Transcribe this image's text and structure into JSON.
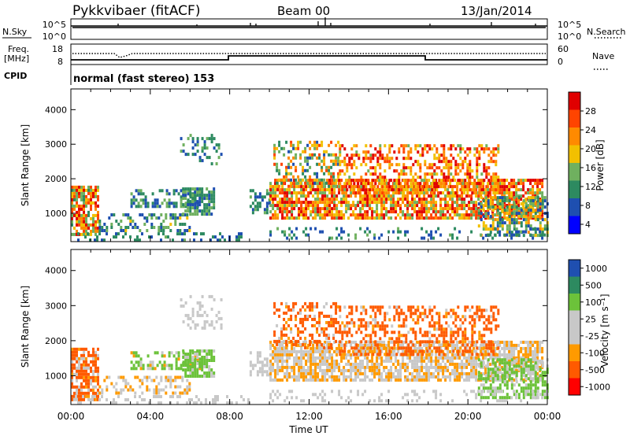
{
  "header": {
    "station": "Pykkvibaer (fitACF)",
    "beam": "Beam 00",
    "date": "13/Jan/2014"
  },
  "panels": {
    "nsky": {
      "left_label": "N.Sky",
      "right_label": "N.Search",
      "left_ticks": [
        "10^5",
        "10^0"
      ],
      "right_ticks": [
        "10^5",
        "10^0"
      ]
    },
    "freq": {
      "left_label_1": "Freq.",
      "left_label_2": "[MHz]",
      "right_label": "Nave",
      "left_ticks": [
        "18",
        "8"
      ],
      "right_ticks": [
        "60",
        "0"
      ]
    },
    "cpid": {
      "left_label": "CPID",
      "text": "normal (fast stereo) 153"
    }
  },
  "colors": {
    "power_scale": [
      "#0000ff",
      "#1e4fb0",
      "#2d8a60",
      "#6fb05f",
      "#f2c000",
      "#ff8a00",
      "#ff4400",
      "#e00000"
    ],
    "velocity_scale": [
      "#ff0000",
      "#ff5a00",
      "#ff9a00",
      "#c8c8c8",
      "#c8c8c8",
      "#6cc23a",
      "#2d8a60",
      "#1f4fb0"
    ]
  },
  "chart_data": [
    {
      "type": "heatmap",
      "id": "power",
      "ylabel": "Slant Range [km]",
      "yticks": [
        1000,
        2000,
        3000,
        4000
      ],
      "ylim": [
        180,
        4600
      ],
      "xlim_hours": [
        0,
        24
      ],
      "colorbar": {
        "label": "Power [dB]",
        "ticks": [
          "28",
          "24",
          "20",
          "16",
          "12",
          "8",
          "4"
        ],
        "range": [
          0,
          30
        ]
      }
    },
    {
      "type": "heatmap",
      "id": "velocity",
      "ylabel": "Slant Range [km]",
      "yticks": [
        1000,
        2000,
        3000,
        4000
      ],
      "ylim": [
        180,
        4600
      ],
      "xlabel": "Time UT",
      "xticks": [
        "00:00",
        "04:00",
        "08:00",
        "12:00",
        "16:00",
        "20:00",
        "00:00"
      ],
      "colorbar": {
        "label": "Velocity [m s⁻¹]",
        "ticks": [
          "1000",
          "500",
          "100",
          "25",
          "-25",
          "-100",
          "-500",
          "-1000"
        ]
      }
    }
  ]
}
